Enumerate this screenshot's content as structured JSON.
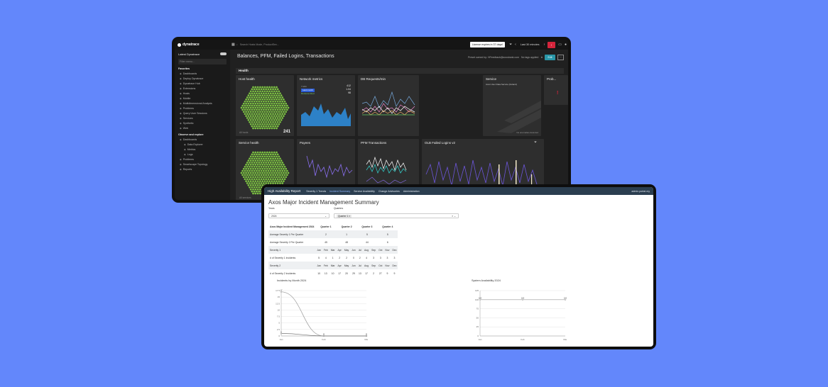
{
  "dynatrace": {
    "brand": "dynatrace",
    "search_placeholder": "Search Hosts Mode, ProductSev...",
    "license_pill": "License expires in 37 days!",
    "timeframe": "Last 30 minutes",
    "sidebar": {
      "header": "Latest Dynatrace",
      "filter_placeholder": "Filter menu...",
      "favorites_label": "Favorites",
      "favorites": [
        "Dashboards",
        "Deploy Dynatrace",
        "Dynatrace Hub",
        "Extensions",
        "Hosts",
        "Mobile",
        "Multidimensional Analysis",
        "Problems",
        "Query User Sessions",
        "Services",
        "Synthetic",
        "Web"
      ],
      "observe_label": "Observe and explore",
      "observe": [
        "Dashboards",
        "Data Explorer",
        "Metrics",
        "Logs",
        "Problems",
        "Smartscape Topology",
        "Reports"
      ]
    },
    "page_title": "Balances, PFM, Failed Logins, Transactions",
    "owner": "Preset owned by: HFeedback@axosbank.com",
    "tags": "No tags applied",
    "share_label": "Edit",
    "section": "Health",
    "tiles": {
      "host_health": {
        "title": "Host health",
        "caption": "All hosts",
        "count": "241"
      },
      "network": {
        "title": "Network metrics",
        "legend": [
          "Traffic",
          "Last month",
          "Retransmitted"
        ],
        "values": [
          "412",
          "1.04",
          "98"
        ]
      },
      "db": {
        "title": "DB Requests/min"
      },
      "service": {
        "title": "Service",
        "subtitle": "Axos User Data Service (Ireland)",
        "footnote": "No anomalies detected"
      },
      "problems": {
        "title": "Prob..."
      },
      "service_health": {
        "title": "Service health",
        "caption": "All services"
      },
      "payees": {
        "title": "Payees"
      },
      "pfm": {
        "title": "PFM Transactions"
      },
      "olb": {
        "title": "OLB Failed Logins v2"
      }
    }
  },
  "report": {
    "brand": "High Availability Report",
    "nav": [
      "Severity 1 Trends",
      "Incident Summary",
      "Service Availability",
      "Change Advisories",
      "Administration"
    ],
    "active_nav": 1,
    "user": "admin.portal.my",
    "title": "Axos Major Incident Management Summary",
    "year_label": "Years",
    "year_value": "2024",
    "quarter_label": "Quarters",
    "quarter_value": "Quarter 1",
    "quarter_header": [
      "Axos Major Incident Management 2024",
      "Quarter 1",
      "Quarter 2",
      "Quarter 3",
      "Quarter 4"
    ],
    "sev1_row": [
      "Average Severity 1 Per Quarter",
      "2",
      "1",
      "5",
      "5"
    ],
    "sev2_row": [
      "Average Severity 2 Per Quarter",
      "45",
      "48",
      "44",
      "6"
    ],
    "month_header_1": [
      "Severity 1",
      "Jan",
      "Feb",
      "Mar",
      "Apr",
      "May",
      "Jun",
      "Jul",
      "Aug",
      "Sep",
      "Oct",
      "Nov",
      "Dec"
    ],
    "month_row_1": [
      "# of Severity 1 Incidents",
      "5",
      "4",
      "1",
      "2",
      "2",
      "0",
      "2",
      "4",
      "3",
      "3",
      "3",
      "3"
    ],
    "month_header_2": [
      "Severity 2",
      "Jan",
      "Feb",
      "Mar",
      "Apr",
      "May",
      "Jun",
      "Jul",
      "Aug",
      "Sep",
      "Oct",
      "Nov",
      "Dec"
    ],
    "month_row_2": [
      "# of Severity 2 Incidents",
      "10",
      "13",
      "10",
      "17",
      "20",
      "29",
      "13",
      "17",
      "2",
      "27",
      "9",
      "9"
    ],
    "chart1_title": "Incidents by Month 2024",
    "chart2_title": "System Availability 2024"
  },
  "chart_data": [
    {
      "type": "line",
      "title": "Incidents by Month 2024",
      "x": [
        "Jan",
        "Feb",
        "Mar"
      ],
      "series": [
        {
          "values": [
            17,
            0,
            0
          ]
        },
        {
          "values": [
            1,
            0,
            0
          ]
        }
      ],
      "ylim": [
        0,
        17.5
      ],
      "yticks": [
        "0",
        "2.5",
        "5",
        "7.5",
        "10",
        "12.5",
        "15",
        "17.5"
      ]
    },
    {
      "type": "line",
      "title": "System Availability 2024",
      "x": [
        "Jan",
        "Feb",
        "Mar"
      ],
      "series": [
        {
          "values": [
            100,
            100,
            100
          ]
        }
      ],
      "ylim": [
        0,
        125
      ],
      "yticks": [
        "0",
        "25",
        "50",
        "75",
        "100",
        "125"
      ]
    }
  ]
}
